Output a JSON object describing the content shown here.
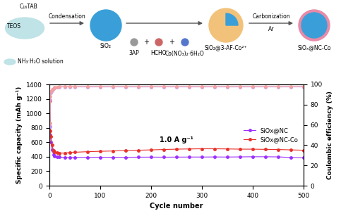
{
  "diagram": {
    "surfactant": "C₁₆TAB",
    "silica_source": "TEOS",
    "solution": "NH₃·H₂O solution",
    "step1": "Condensation",
    "product1": "SiO₂",
    "reagents": [
      "3AP",
      "HCHO",
      "Co(NO₃)₂·6H₂O"
    ],
    "operators": [
      "+",
      "+"
    ],
    "product2": "SiO₂@3-AF-Co²⁺",
    "step2": "Carbonization",
    "atmosphere": "Ar",
    "product3": "SiOₓ@NC-Co"
  },
  "chart_data": {
    "type": "line",
    "xlabel": "Cycle number",
    "ylabel": "Specific capacity (mAh g⁻¹)",
    "y2label": "Coulombic efficiency (%)",
    "annotation": "1.0 A g⁻¹",
    "x": [
      1,
      2,
      3,
      5,
      8,
      10,
      15,
      20,
      30,
      40,
      50,
      75,
      100,
      125,
      150,
      175,
      200,
      225,
      250,
      275,
      300,
      325,
      350,
      375,
      400,
      425,
      450,
      475,
      500
    ],
    "xlim": [
      0,
      500
    ],
    "xticks": [
      0,
      100,
      200,
      300,
      400,
      500
    ],
    "ylim": [
      0,
      1400
    ],
    "yticks": [
      0,
      200,
      400,
      600,
      800,
      1000,
      1200,
      1400
    ],
    "y2lim": [
      0,
      100
    ],
    "y2ticks": [
      0,
      20,
      40,
      60,
      80,
      100
    ],
    "grid": false,
    "legend": "center right",
    "series": [
      {
        "name": "SiOx@NC",
        "color": "#9b30ff",
        "marker": "o",
        "line_style": "solid",
        "values": [
          820,
          700,
          600,
          500,
          430,
          410,
          400,
          395,
          390,
          390,
          392,
          392,
          393,
          393,
          393,
          394,
          395,
          394,
          395,
          396,
          396,
          397,
          396,
          398,
          400,
          400,
          398,
          390,
          385
        ]
      },
      {
        "name": "SiOx@NC-Co",
        "color": "#e8302a",
        "marker": "o",
        "line_style": "solid",
        "values": [
          1180,
          760,
          680,
          560,
          490,
          470,
          455,
          450,
          452,
          458,
          462,
          470,
          475,
          480,
          485,
          490,
          495,
          500,
          505,
          508,
          510,
          510,
          508,
          505,
          505,
          502,
          500,
          495,
          490
        ]
      },
      {
        "axis": "y2",
        "color": "#c9a0f0",
        "marker": "o",
        "line_style": "solid",
        "values": [
          58,
          85,
          92,
          94,
          96,
          96.5,
          97,
          97.5,
          97.5,
          97.5,
          97.5,
          97.5,
          97.5,
          97.5,
          97.5,
          97.5,
          97.5,
          97.5,
          97.5,
          97.5,
          97.5,
          97.5,
          97.5,
          97.5,
          97.5,
          97.5,
          97.5,
          97.5,
          97.5
        ]
      },
      {
        "axis": "y2",
        "color": "#f4a0a0",
        "marker": "o",
        "line_style": "solid",
        "values": [
          62,
          88,
          93,
          95,
          96,
          97,
          97.5,
          98,
          98,
          98,
          98,
          98,
          98,
          98,
          98,
          98,
          98,
          98,
          98,
          98,
          98,
          98,
          98,
          98,
          98,
          98,
          98,
          98,
          98
        ]
      }
    ]
  }
}
